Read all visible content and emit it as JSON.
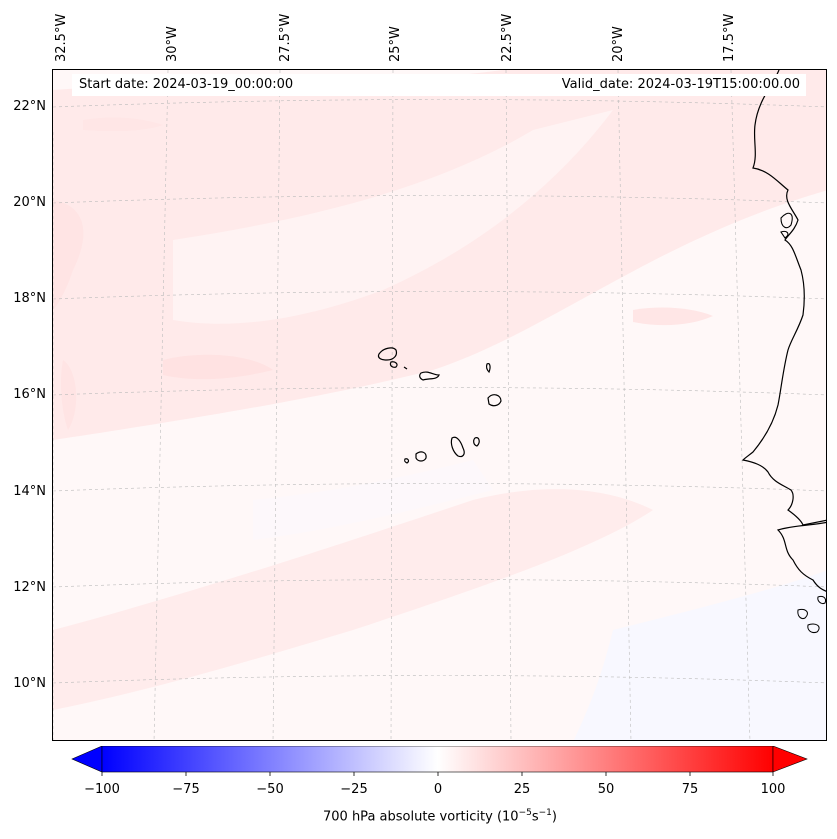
{
  "map": {
    "start_date": "Start date: 2024-03-19_00:00:00",
    "valid_date": "Valid_date: 2024-03-19T15:00:00.00",
    "lon_labels": [
      "32.5°W",
      "30°W",
      "27.5°W",
      "25°W",
      "22.5°W",
      "20°W",
      "17.5°W"
    ],
    "lat_labels": [
      "22°N",
      "20°N",
      "18°N",
      "16°N",
      "14°N",
      "12°N",
      "10°N"
    ],
    "coastline_color": "#000000",
    "gridline_color": "#bbbbbb"
  },
  "colorbar": {
    "ticks": [
      "−100",
      "−75",
      "−50",
      "−25",
      "0",
      "25",
      "50",
      "75",
      "100"
    ],
    "label_prefix": "700 hPa absolute vorticity (10",
    "label_exp1": "−5",
    "label_mid": "s",
    "label_exp2": "−1",
    "label_suffix": ")",
    "min_color": "#0000ff",
    "mid_color": "#ffffff",
    "max_color": "#ff0000"
  }
}
